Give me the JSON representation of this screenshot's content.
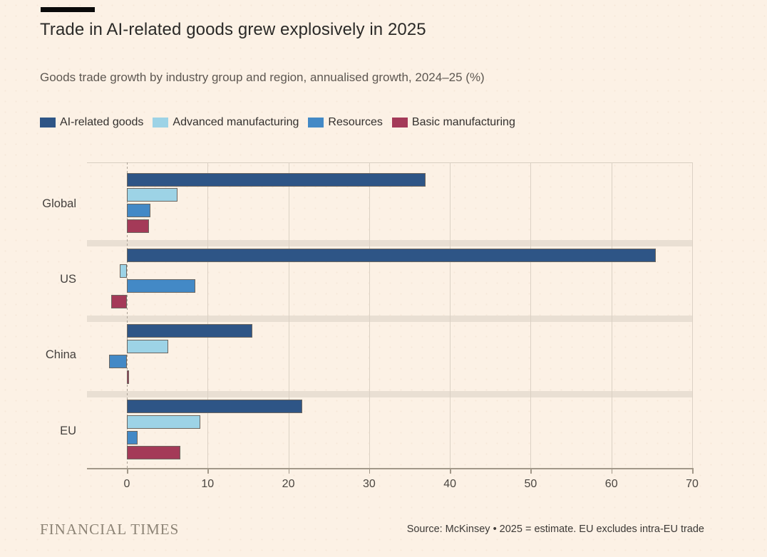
{
  "header": {
    "title": "Trade in AI-related goods grew explosively in 2025",
    "subtitle": "Goods trade growth by industry group and region, annualised growth, 2024–25 (%)"
  },
  "chart_data": {
    "type": "bar",
    "orientation": "horizontal",
    "title": "Trade in AI-related goods grew explosively in 2025",
    "subtitle": "Goods trade growth by industry group and region, annualised growth, 2024–25 (%)",
    "categories": [
      "Global",
      "US",
      "China",
      "EU"
    ],
    "series": [
      {
        "name": "AI-related goods",
        "color": "#2E5586",
        "values": [
          37.0,
          65.5,
          15.5,
          21.7
        ]
      },
      {
        "name": "Advanced manufacturing",
        "color": "#9DD3E6",
        "values": [
          6.3,
          -0.9,
          5.1,
          9.1
        ]
      },
      {
        "name": "Resources",
        "color": "#4389C6",
        "values": [
          2.9,
          8.5,
          -2.2,
          1.3
        ]
      },
      {
        "name": "Basic manufacturing",
        "color": "#A43A58",
        "values": [
          2.7,
          -1.9,
          0.2,
          6.6
        ]
      }
    ],
    "xlim": [
      -5,
      70
    ],
    "xticks": [
      0,
      10,
      20,
      30,
      40,
      50,
      60,
      70
    ],
    "grid": "vertical",
    "legend_position": "top",
    "unit": "%"
  },
  "colors": {
    "background": "#FCF1E5",
    "bar_border": "#6B655E",
    "separator_band": "#E9DFD3",
    "gridline": "#DBD1C4",
    "zero_line": "#ABA195",
    "axis": "#A29889"
  },
  "footer": {
    "brand": "FINANCIAL TIMES",
    "source": "Source: McKinsey • 2025 = estimate. EU excludes intra-EU trade"
  }
}
